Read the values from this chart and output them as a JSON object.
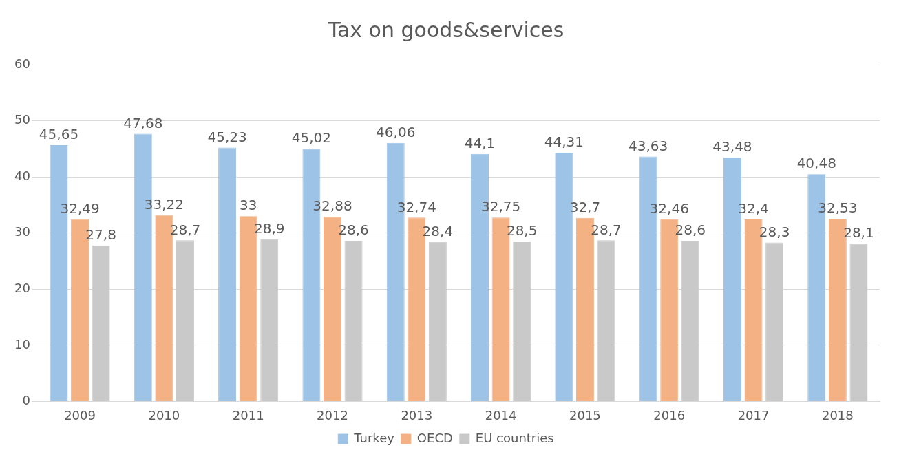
{
  "chart_data": {
    "type": "bar",
    "title": "Tax on goods&services",
    "categories": [
      "2009",
      "2010",
      "2011",
      "2012",
      "2013",
      "2014",
      "2015",
      "2016",
      "2017",
      "2018"
    ],
    "series": [
      {
        "name": "Turkey",
        "color": "#9dc3e6",
        "values": [
          45.65,
          47.68,
          45.23,
          45.02,
          46.06,
          44.1,
          44.31,
          43.63,
          43.48,
          40.48
        ],
        "value_labels": [
          "45,65",
          "47,68",
          "45,23",
          "45,02",
          "46,06",
          "44,1",
          "44,31",
          "43,63",
          "43,48",
          "40,48"
        ]
      },
      {
        "name": "OECD",
        "color": "#f4b183",
        "values": [
          32.49,
          33.22,
          33,
          32.88,
          32.74,
          32.75,
          32.7,
          32.46,
          32.4,
          32.53
        ],
        "value_labels": [
          "32,49",
          "33,22",
          "33",
          "32,88",
          "32,74",
          "32,75",
          "32,7",
          "32,46",
          "32,4",
          "32,53"
        ]
      },
      {
        "name": "EU countries",
        "color": "#c9c9c9",
        "values": [
          27.8,
          28.7,
          28.9,
          28.6,
          28.4,
          28.5,
          28.7,
          28.6,
          28.3,
          28.1
        ],
        "value_labels": [
          "27,8",
          "28,7",
          "28,9",
          "28,6",
          "28,4",
          "28,5",
          "28,7",
          "28,6",
          "28,3",
          "28,1"
        ]
      }
    ],
    "ylim": [
      0,
      60
    ],
    "yticks": [
      0,
      10,
      20,
      30,
      40,
      50,
      60
    ],
    "grid": "y",
    "legend": "bottom"
  }
}
